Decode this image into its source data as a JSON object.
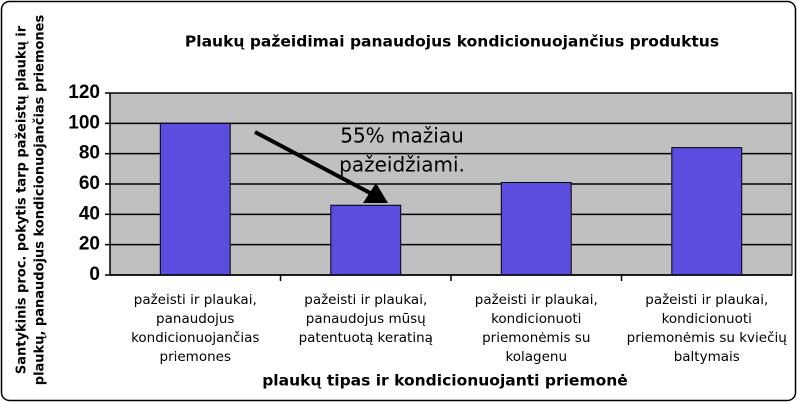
{
  "chart_data": {
    "type": "bar",
    "title": "Plaukų pažeidimai panaudojus kondicionuojančius produktus",
    "ylabel": [
      "Santykinis proc. pokytis tarp pažeistų plaukų ir",
      "plaukų, panaudojus kondicionuojančias priemones"
    ],
    "xlabel": "plaukų tipas ir kondicionuojanti priemonė",
    "annotation": [
      "55% mažiau",
      "pažeidžiami."
    ],
    "categories": [
      [
        "pažeisti ir plaukai,",
        "panaudojus",
        "kondicionuojančias",
        "priemones"
      ],
      [
        "pažeisti ir plaukai,",
        "panaudojus mūsų",
        "patentuotą keratiną"
      ],
      [
        "pažeisti ir plaukai,",
        "kondicionuoti",
        "priemonėmis su",
        "kolagenu"
      ],
      [
        "pažeisti ir plaukai,",
        "kondicionuoti",
        "priemonėmis su kviečių",
        "baltymais"
      ]
    ],
    "values": [
      100,
      46,
      61,
      84
    ],
    "color": "#5b4de0",
    "ylim": [
      0,
      120
    ],
    "yticks": [
      0,
      20,
      40,
      60,
      80,
      100,
      120
    ],
    "grid": true
  }
}
